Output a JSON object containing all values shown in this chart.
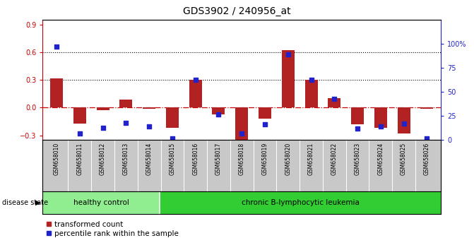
{
  "title": "GDS3902 / 240956_at",
  "samples": [
    "GSM658010",
    "GSM658011",
    "GSM658012",
    "GSM658013",
    "GSM658014",
    "GSM658015",
    "GSM658016",
    "GSM658017",
    "GSM658018",
    "GSM658019",
    "GSM658020",
    "GSM658021",
    "GSM658022",
    "GSM658023",
    "GSM658024",
    "GSM658025",
    "GSM658026"
  ],
  "bar_values": [
    0.32,
    -0.17,
    -0.03,
    0.09,
    -0.01,
    -0.22,
    0.3,
    -0.07,
    -0.35,
    -0.12,
    0.62,
    0.3,
    0.1,
    -0.18,
    -0.22,
    -0.28,
    -0.01
  ],
  "dot_values_pct": [
    97,
    7,
    13,
    18,
    14,
    2,
    63,
    27,
    7,
    16,
    89,
    63,
    43,
    12,
    14,
    17,
    2
  ],
  "bar_color": "#B22222",
  "dot_color": "#2222CC",
  "ylim_left": [
    -0.35,
    0.95
  ],
  "yticks_left": [
    -0.3,
    0.0,
    0.3,
    0.6,
    0.9
  ],
  "ylim_right": [
    0,
    125
  ],
  "yticks_right": [
    0,
    25,
    50,
    75,
    100
  ],
  "ytick_right_labels": [
    "0",
    "25",
    "50",
    "75",
    "100%"
  ],
  "left_axis_color": "#CC0000",
  "right_axis_color": "#2222CC",
  "healthy_n": 5,
  "healthy_label": "healthy control",
  "disease_label": "chronic B-lymphocytic leukemia",
  "disease_state_label": "disease state",
  "legend_bar": "transformed count",
  "legend_dot": "percentile rank within the sample",
  "healthy_color": "#90EE90",
  "disease_color": "#32CD32",
  "group_bg": "#C8C8C8"
}
